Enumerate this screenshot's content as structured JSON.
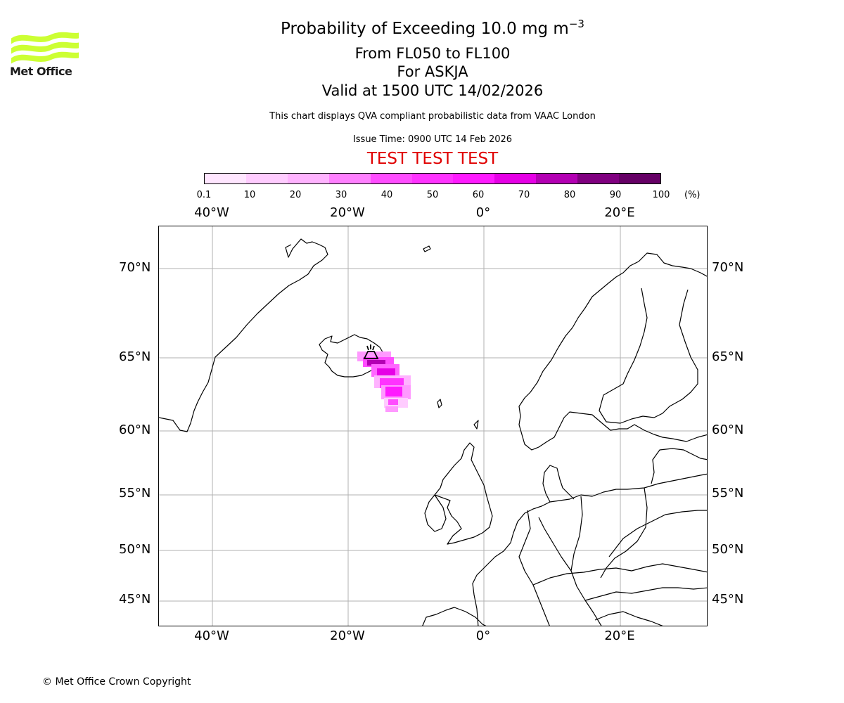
{
  "title": {
    "main": "Probability of Exceeding 10.0 mg m",
    "exponent": "−3",
    "level_range": "From FL050 to FL100",
    "volcano": "For ASKJA",
    "valid": "Valid at 1500 UTC 14/02/2026",
    "description": "This chart displays QVA compliant probabilistic data from VAAC London",
    "issue_time": "Issue Time: 0900 UTC 14 Feb 2026",
    "test_banner": "TEST TEST TEST"
  },
  "logo": {
    "text": "Met Office",
    "icon": "met-office-wave-logo",
    "color": "#ccff33"
  },
  "colorbar": {
    "ticks": [
      "0.1",
      "10",
      "20",
      "30",
      "40",
      "50",
      "60",
      "70",
      "80",
      "90",
      "100"
    ],
    "unit": "(%)",
    "colors": [
      "#ffe6ff",
      "#ffccff",
      "#ffb3ff",
      "#ff80ff",
      "#ff4dff",
      "#ff33ff",
      "#ff1aff",
      "#e600e6",
      "#b300b3",
      "#800080",
      "#660066"
    ]
  },
  "map": {
    "lon_labels_top": [
      "40°W",
      "20°W",
      "0°",
      "20°E"
    ],
    "lon_labels_bottom": [
      "40°W",
      "20°W",
      "0°",
      "20°E"
    ],
    "lat_labels_left": [
      "70°N",
      "65°N",
      "60°N",
      "55°N",
      "50°N",
      "45°N"
    ],
    "lat_labels_right": [
      "70°N",
      "65°N",
      "60°N",
      "55°N",
      "50°N",
      "45°N"
    ],
    "volcano_marker": "volcano-icon",
    "plume_color": "#ff33ff"
  },
  "footer": {
    "copyright": "© Met Office Crown Copyright"
  }
}
